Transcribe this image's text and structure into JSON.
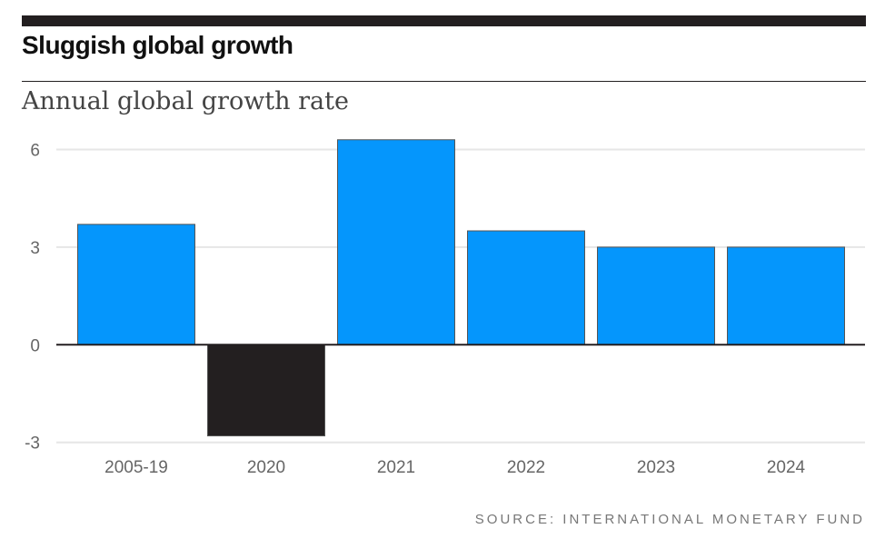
{
  "header": {
    "title": "Sluggish global growth",
    "subtitle": "Annual global growth rate"
  },
  "source": "SOURCE: INTERNATIONAL MONETARY FUND",
  "colors": {
    "positive": "#0596fc",
    "negative": "#231f20",
    "grid": "#e6e6e6"
  },
  "chart_data": {
    "type": "bar",
    "title": "Sluggish global growth",
    "subtitle": "Annual global growth rate",
    "categories": [
      "2005-19",
      "2020",
      "2021",
      "2022",
      "2023",
      "2024"
    ],
    "values": [
      3.7,
      -2.8,
      6.3,
      3.5,
      3.0,
      3.0
    ],
    "ylim": [
      -3,
      6
    ],
    "yticks": [
      6,
      3,
      0,
      -3
    ],
    "grid": true,
    "xlabel": "",
    "ylabel": ""
  }
}
